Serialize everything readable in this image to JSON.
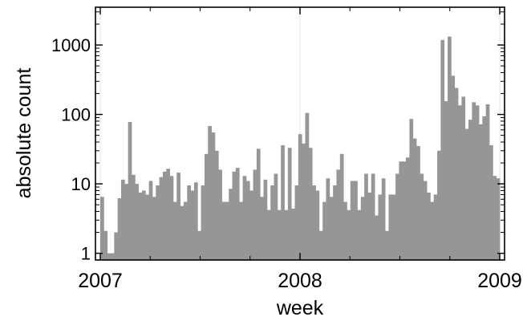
{
  "chart_data": {
    "type": "bar",
    "xlabel": "week",
    "ylabel": "absolute count",
    "y_scale": "log",
    "ylim": [
      0.8,
      3500
    ],
    "xlim": [
      2007,
      2009
    ],
    "x_ticks": [
      {
        "value": 2007,
        "label": "2007"
      },
      {
        "value": 2008,
        "label": "2008"
      },
      {
        "value": 2009,
        "label": "2009"
      }
    ],
    "y_ticks": [
      {
        "value": 1,
        "label": "1"
      },
      {
        "value": 10,
        "label": "10"
      },
      {
        "value": 100,
        "label": "100"
      },
      {
        "value": 1000,
        "label": "1000"
      }
    ],
    "bar_color": "#969696",
    "grid": "vertical lines at year ticks only",
    "week_starts": [
      "2007-W01",
      "2009-W01"
    ],
    "values": [
      6.5,
      2.1,
      1.0,
      1.0,
      2.0,
      6.2,
      11.5,
      10.0,
      78,
      13.5,
      10.0,
      7.5,
      8.0,
      7.0,
      11.0,
      6.5,
      9.5,
      12.5,
      15.0,
      16.5,
      13.0,
      5.5,
      14.5,
      4.8,
      5.5,
      9.5,
      8.0,
      10.5,
      2.1,
      9.5,
      27,
      68,
      55,
      30,
      16,
      5.5,
      5.5,
      8.5,
      15,
      17,
      5.5,
      13,
      11,
      8,
      16,
      32,
      6.5,
      11.5,
      4.2,
      9.5,
      14,
      4.2,
      36,
      4.2,
      33,
      4.4,
      9.5,
      52,
      38,
      105,
      33,
      9.5,
      8.0,
      2.1,
      5.5,
      12,
      6.5,
      9.5,
      16,
      27,
      5.5,
      4.2,
      11,
      11,
      4.2,
      6.5,
      14,
      7.5,
      14,
      3.5,
      7.0,
      12,
      2.1,
      7.0,
      7.0,
      14,
      21,
      21,
      24,
      86,
      45,
      35,
      14,
      11,
      7.5,
      5.5,
      7.0,
      30,
      1180,
      155,
      1320,
      360,
      240,
      135,
      180,
      62,
      84,
      150,
      135,
      72,
      94,
      140,
      36,
      13,
      12
    ]
  }
}
